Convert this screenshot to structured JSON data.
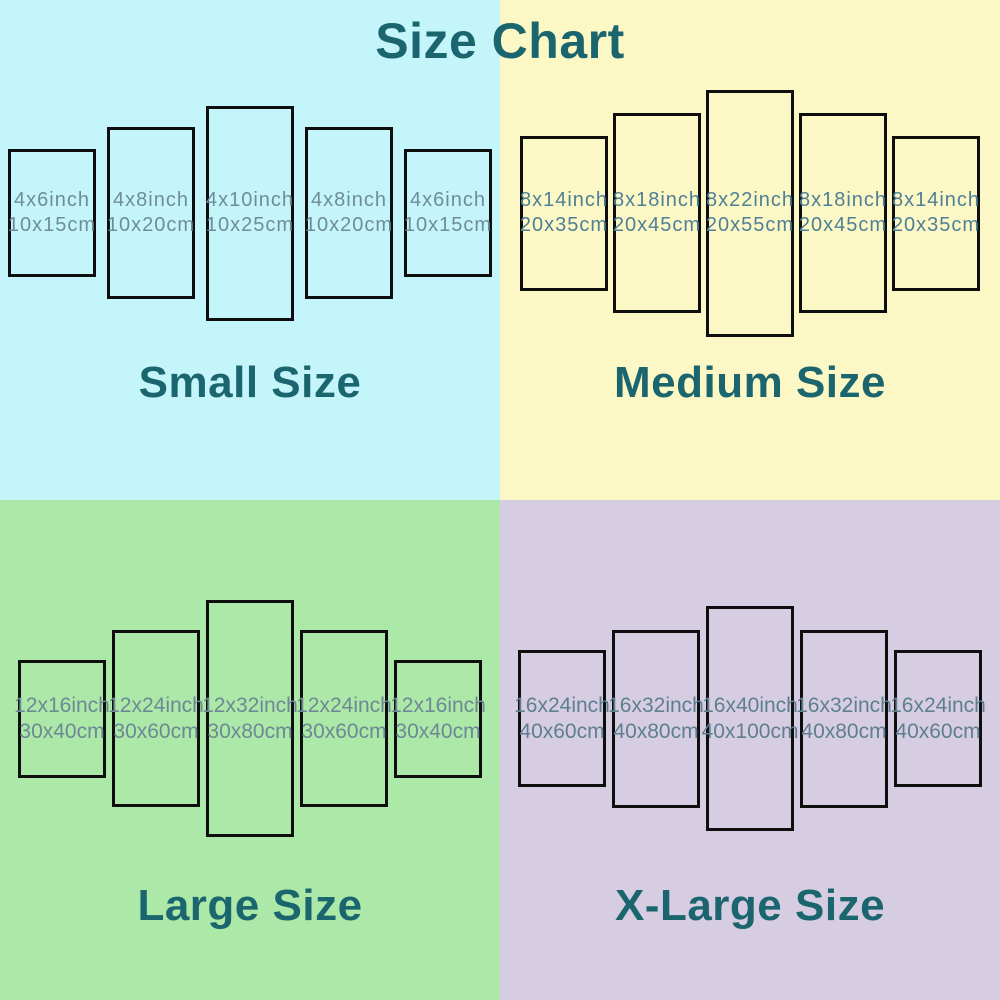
{
  "title": "Size Chart",
  "colors": {
    "title_text": "#1b656e",
    "panel_border": "#0e0e0e"
  },
  "quadrants": [
    {
      "name": "small",
      "label": "Small Size",
      "bg": "#c3f5fb",
      "text_color": "#6f8d99",
      "panels": [
        {
          "inch": "4x6inch",
          "cm": "10x15cm"
        },
        {
          "inch": "4x8inch",
          "cm": "10x20cm"
        },
        {
          "inch": "4x10inch",
          "cm": "10x25cm"
        },
        {
          "inch": "4x8inch",
          "cm": "10x20cm"
        },
        {
          "inch": "4x6inch",
          "cm": "10x15cm"
        }
      ]
    },
    {
      "name": "medium",
      "label": "Medium Size",
      "bg": "#fcf8c6",
      "text_color": "#4e7f96",
      "panels": [
        {
          "inch": "8x14inch",
          "cm": "20x35cm"
        },
        {
          "inch": "8x18inch",
          "cm": "20x45cm"
        },
        {
          "inch": "8x22inch",
          "cm": "20x55cm"
        },
        {
          "inch": "8x18inch",
          "cm": "20x45cm"
        },
        {
          "inch": "8x14inch",
          "cm": "20x35cm"
        }
      ]
    },
    {
      "name": "large",
      "label": "Large Size",
      "bg": "#ace8a7",
      "text_color": "#6d8995",
      "panels": [
        {
          "inch": "12x16inch",
          "cm": "30x40cm"
        },
        {
          "inch": "12x24inch",
          "cm": "30x60cm"
        },
        {
          "inch": "12x32inch",
          "cm": "30x80cm"
        },
        {
          "inch": "12x24inch",
          "cm": "30x60cm"
        },
        {
          "inch": "12x16inch",
          "cm": "30x40cm"
        }
      ]
    },
    {
      "name": "xlarge",
      "label": "X-Large Size",
      "bg": "#d7cde3",
      "text_color": "#5e7f90",
      "panels": [
        {
          "inch": "16x24inch",
          "cm": "40x60cm"
        },
        {
          "inch": "16x32inch",
          "cm": "40x80cm"
        },
        {
          "inch": "16x40inch",
          "cm": "40x100cm"
        },
        {
          "inch": "16x32inch",
          "cm": "40x80cm"
        },
        {
          "inch": "16x24inch",
          "cm": "40x60cm"
        }
      ]
    }
  ]
}
